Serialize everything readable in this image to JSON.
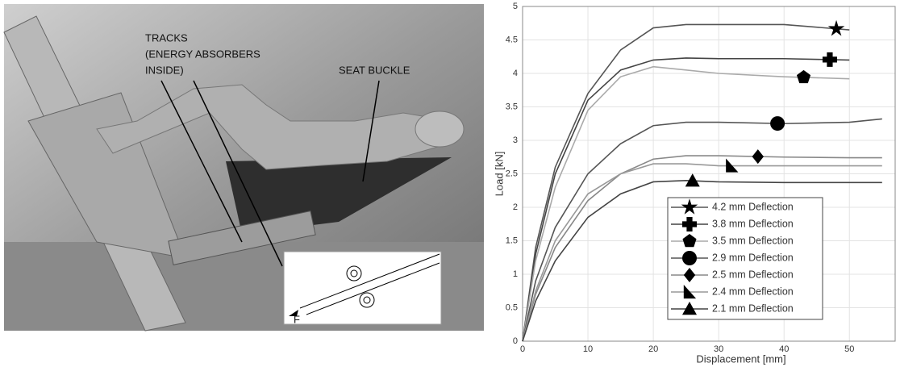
{
  "photo": {
    "labels": {
      "tracks": "TRACKS",
      "tracks_note_1": "(ENERGY ABSORBERS",
      "tracks_note_2": "INSIDE)",
      "seat_buckle": "SEAT BUCKLE",
      "force": "F"
    }
  },
  "chart_data": {
    "type": "line",
    "x_label": "Displacement [mm]",
    "y_label": "Load [kN]",
    "x": [
      0,
      2,
      5,
      10,
      15,
      20,
      25,
      30,
      40,
      50,
      55
    ],
    "xlim": [
      0,
      57
    ],
    "xticks": [
      0,
      10,
      20,
      30,
      40,
      50
    ],
    "ylim": [
      0,
      5
    ],
    "yticks": [
      0,
      0.5,
      1,
      1.5,
      2,
      2.5,
      3,
      3.5,
      4,
      4.5,
      5
    ],
    "grid": true,
    "legend": "lower-center",
    "series": [
      {
        "name": "4.2 mm Deflection",
        "color": "#555555",
        "marker": "star",
        "values": [
          0,
          1.4,
          2.6,
          3.7,
          4.35,
          4.68,
          4.73,
          4.73,
          4.73,
          4.65,
          null
        ]
      },
      {
        "name": "3.8 mm Deflection",
        "color": "#444444",
        "marker": "cross",
        "values": [
          0,
          1.3,
          2.5,
          3.6,
          4.05,
          4.2,
          4.23,
          4.22,
          4.22,
          4.2,
          null
        ]
      },
      {
        "name": "3.5 mm Deflection",
        "color": "#aaaaaa",
        "marker": "pentagon",
        "values": [
          0,
          1.2,
          2.3,
          3.45,
          3.95,
          4.1,
          4.05,
          4.0,
          3.95,
          3.92,
          null
        ]
      },
      {
        "name": "2.9 mm Deflection",
        "color": "#555555",
        "marker": "circle",
        "values": [
          0,
          0.9,
          1.7,
          2.5,
          2.95,
          3.22,
          3.27,
          3.27,
          3.25,
          3.27,
          3.32
        ]
      },
      {
        "name": "2.5 mm Deflection",
        "color": "#888888",
        "marker": "diamond",
        "values": [
          0,
          0.7,
          1.4,
          2.1,
          2.5,
          2.72,
          2.77,
          2.77,
          2.75,
          2.74,
          2.74
        ]
      },
      {
        "name": "2.4 mm Deflection",
        "color": "#999999",
        "marker": "flag",
        "values": [
          0,
          0.75,
          1.5,
          2.2,
          2.5,
          2.65,
          2.65,
          2.62,
          2.62,
          2.62,
          2.62
        ]
      },
      {
        "name": "2.1 mm Deflection",
        "color": "#444444",
        "marker": "triangle",
        "values": [
          0,
          0.6,
          1.2,
          1.85,
          2.2,
          2.38,
          2.4,
          2.38,
          2.37,
          2.37,
          2.37
        ]
      }
    ]
  }
}
